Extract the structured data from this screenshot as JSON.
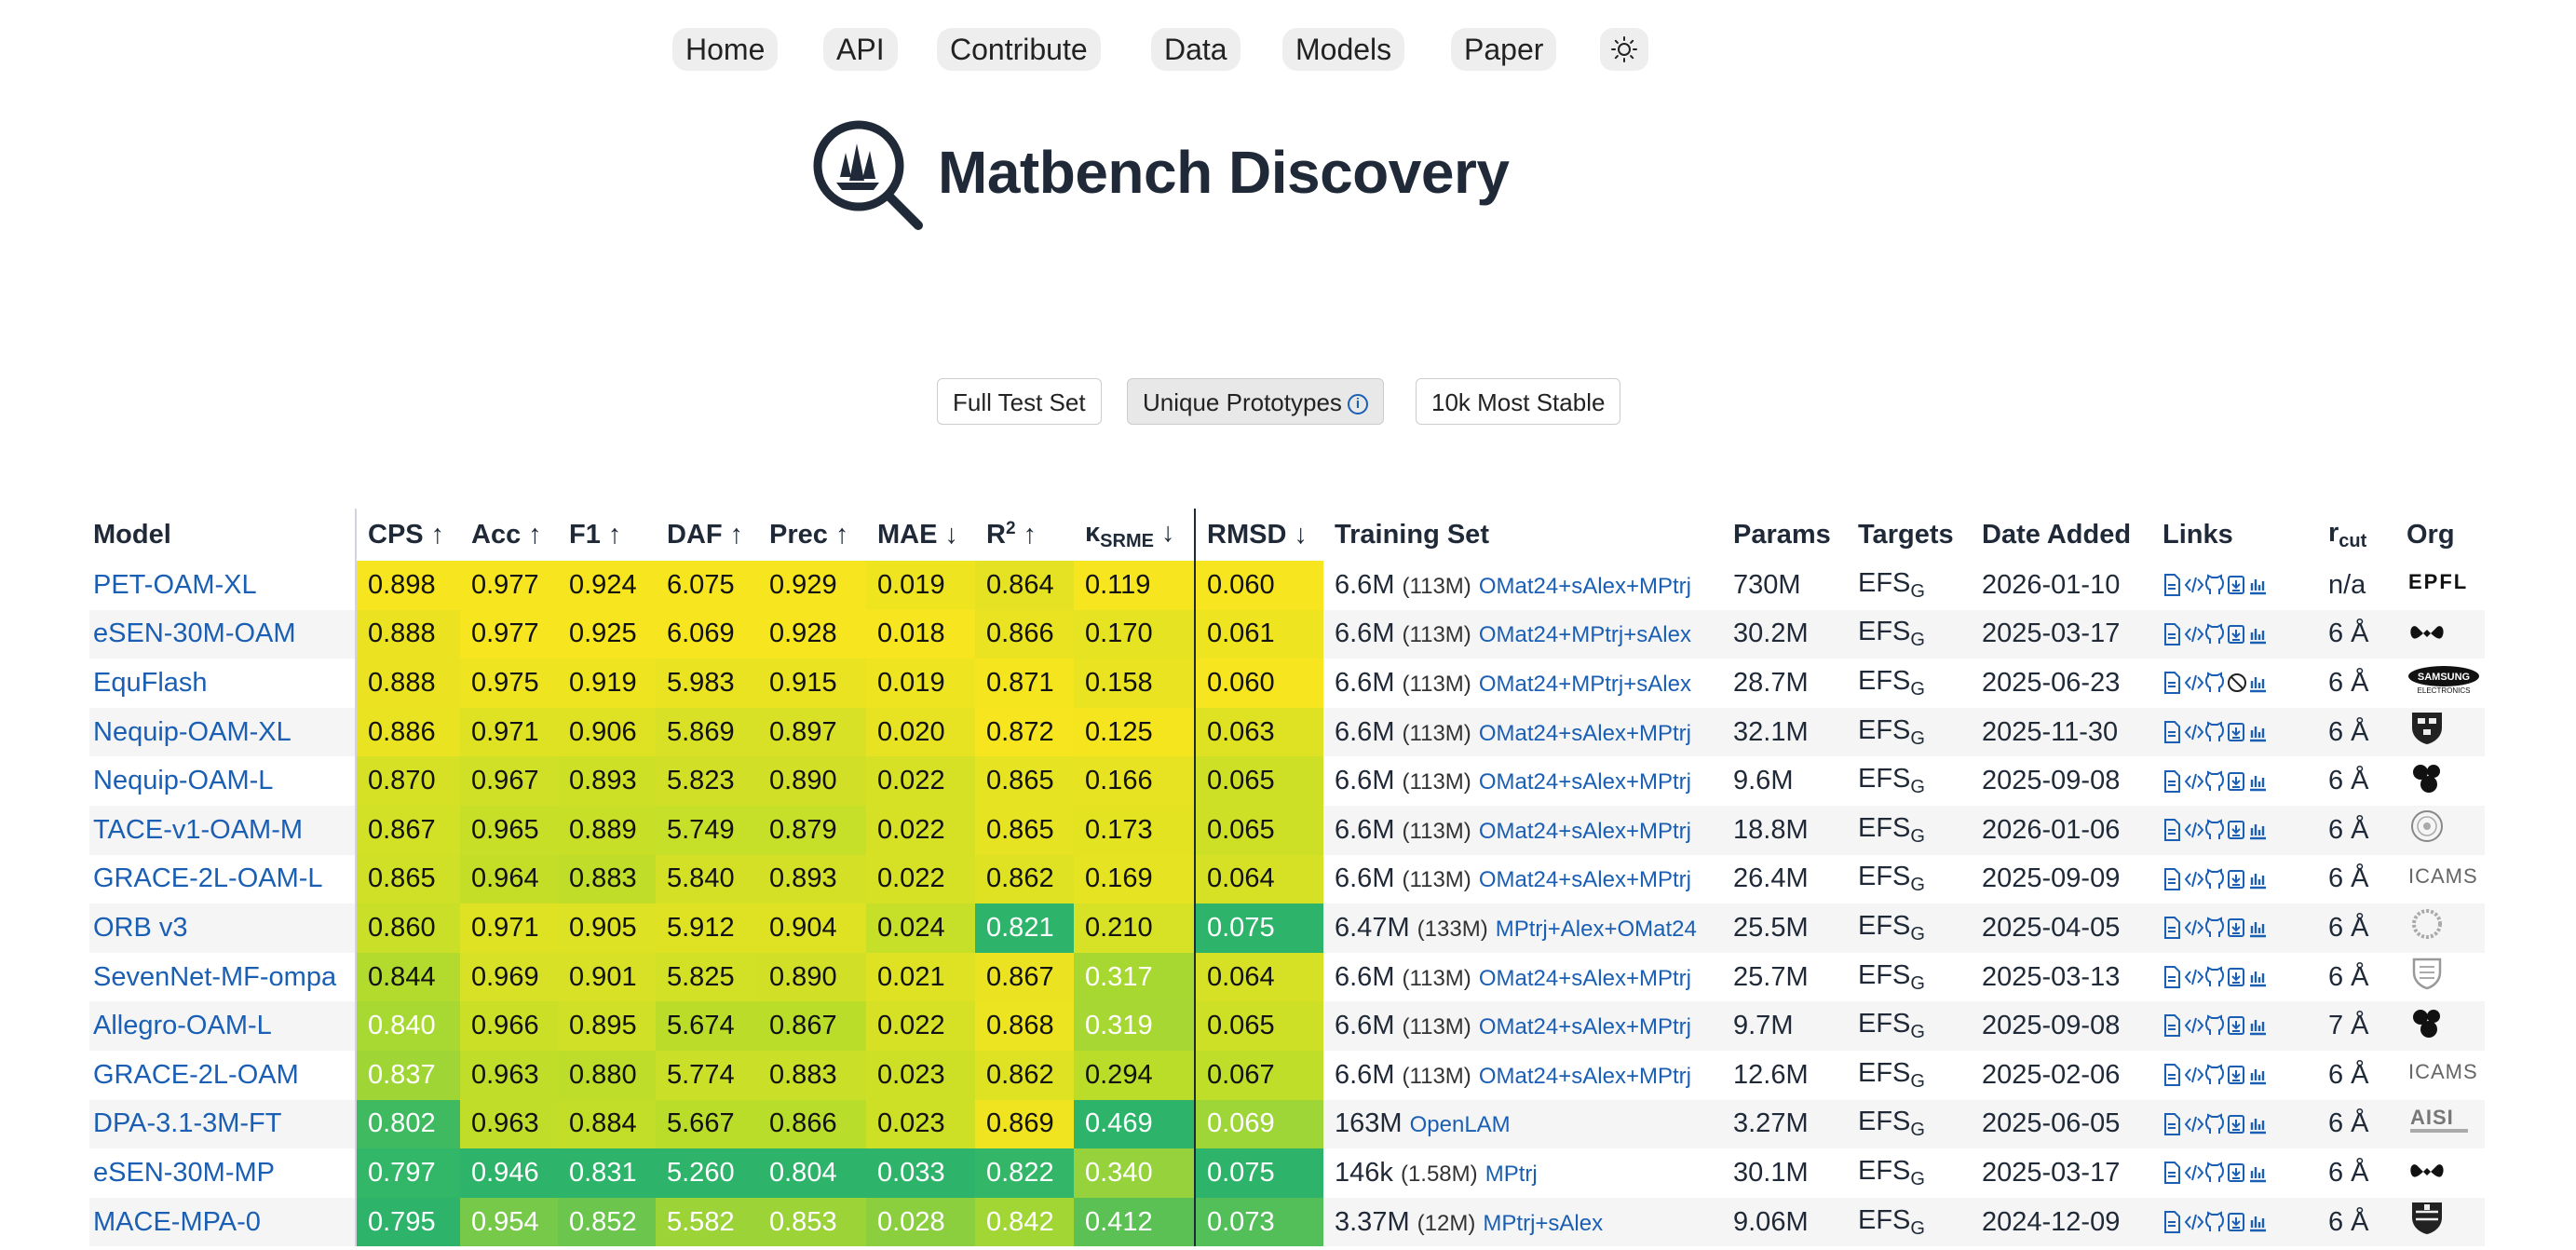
{
  "nav": {
    "items": [
      "Home",
      "API",
      "Contribute",
      "Data",
      "Models",
      "Paper"
    ],
    "theme_icon": "sun-icon"
  },
  "title": "Matbench Discovery",
  "logo_icon": "magnifier-crystal-icon",
  "test_sets": {
    "items": [
      "Full Test Set",
      "Unique Prototypes",
      "10k Most Stable"
    ],
    "active": "Unique Prototypes",
    "info_icon": "info-icon"
  },
  "colors": {
    "link": "#1a5fb4",
    "heat_high": "#f7e51f",
    "heat_low": "#2db46a"
  },
  "table": {
    "headers": {
      "model": "Model",
      "cps": "CPS ↑",
      "acc": "Acc ↑",
      "f1": "F1 ↑",
      "daf": "DAF ↑",
      "prec": "Prec ↑",
      "mae": "MAE ↓",
      "r2_base": "R",
      "r2_sup": "2",
      "r2_arrow": " ↑",
      "kappa_base": "κ",
      "kappa_sub": "SRME",
      "kappa_arrow": " ↓",
      "rmsd": "RMSD ↓",
      "training_set": "Training Set",
      "params": "Params",
      "targets": "Targets",
      "date_added": "Date Added",
      "links": "Links",
      "rcut_base": "r",
      "rcut_sub": "cut",
      "org": "Org"
    },
    "link_icons": [
      "paper-icon",
      "code-icon",
      "github-icon",
      "checkpoint-icon",
      "bar-chart-icon"
    ],
    "rows": [
      {
        "model": "PET-OAM-XL",
        "cps": "0.898",
        "acc": "0.977",
        "f1": "0.924",
        "daf": "6.075",
        "prec": "0.929",
        "mae": "0.019",
        "r2": "0.864",
        "kappa": "0.119",
        "rmsd": "0.060",
        "train_n": "6.6M",
        "train_m": "(113M)",
        "train_sets": [
          "OMat24",
          "sAlex",
          "MPtrj"
        ],
        "params": "730M",
        "target_base": "EFS",
        "target_sub": "G",
        "date": "2026-01-10",
        "rcut": "n/a",
        "org": "EPFL"
      },
      {
        "model": "eSEN-30M-OAM",
        "cps": "0.888",
        "acc": "0.977",
        "f1": "0.925",
        "daf": "6.069",
        "prec": "0.928",
        "mae": "0.018",
        "r2": "0.866",
        "kappa": "0.170",
        "rmsd": "0.061",
        "train_n": "6.6M",
        "train_m": "(113M)",
        "train_sets": [
          "OMat24",
          "MPtrj",
          "sAlex"
        ],
        "params": "30.2M",
        "target_base": "EFS",
        "target_sub": "G",
        "date": "2025-03-17",
        "rcut": "6 Å",
        "org": "meta"
      },
      {
        "model": "EquFlash",
        "cps": "0.888",
        "acc": "0.975",
        "f1": "0.919",
        "daf": "5.983",
        "prec": "0.915",
        "mae": "0.019",
        "r2": "0.871",
        "kappa": "0.158",
        "rmsd": "0.060",
        "train_n": "6.6M",
        "train_m": "(113M)",
        "train_sets": [
          "OMat24",
          "MPtrj",
          "sAlex"
        ],
        "params": "28.7M",
        "target_base": "EFS",
        "target_sub": "G",
        "date": "2025-06-23",
        "rcut": "6 Å",
        "org": "SAMSUNG"
      },
      {
        "model": "Nequip-OAM-XL",
        "cps": "0.886",
        "acc": "0.971",
        "f1": "0.906",
        "daf": "5.869",
        "prec": "0.897",
        "mae": "0.020",
        "r2": "0.872",
        "kappa": "0.125",
        "rmsd": "0.063",
        "train_n": "6.6M",
        "train_m": "(113M)",
        "train_sets": [
          "OMat24",
          "sAlex",
          "MPtrj"
        ],
        "params": "32.1M",
        "target_base": "EFS",
        "target_sub": "G",
        "date": "2025-11-30",
        "rcut": "6 Å",
        "org": "harvard"
      },
      {
        "model": "Nequip-OAM-L",
        "cps": "0.870",
        "acc": "0.967",
        "f1": "0.893",
        "daf": "5.823",
        "prec": "0.890",
        "mae": "0.022",
        "r2": "0.865",
        "kappa": "0.166",
        "rmsd": "0.065",
        "train_n": "6.6M",
        "train_m": "(113M)",
        "train_sets": [
          "OMat24",
          "sAlex",
          "MPtrj"
        ],
        "params": "9.6M",
        "target_base": "EFS",
        "target_sub": "G",
        "date": "2025-09-08",
        "rcut": "6 Å",
        "org": "mir"
      },
      {
        "model": "TACE-v1-OAM-M",
        "cps": "0.867",
        "acc": "0.965",
        "f1": "0.889",
        "daf": "5.749",
        "prec": "0.879",
        "mae": "0.022",
        "r2": "0.865",
        "kappa": "0.173",
        "rmsd": "0.065",
        "train_n": "6.6M",
        "train_m": "(113M)",
        "train_sets": [
          "OMat24",
          "sAlex",
          "MPtrj"
        ],
        "params": "18.8M",
        "target_base": "EFS",
        "target_sub": "G",
        "date": "2026-01-06",
        "rcut": "6 Å",
        "org": "seal"
      },
      {
        "model": "GRACE-2L-OAM-L",
        "cps": "0.865",
        "acc": "0.964",
        "f1": "0.883",
        "daf": "5.840",
        "prec": "0.893",
        "mae": "0.022",
        "r2": "0.862",
        "kappa": "0.169",
        "rmsd": "0.064",
        "train_n": "6.6M",
        "train_m": "(113M)",
        "train_sets": [
          "OMat24",
          "sAlex",
          "MPtrj"
        ],
        "params": "26.4M",
        "target_base": "EFS",
        "target_sub": "G",
        "date": "2025-09-09",
        "rcut": "6 Å",
        "org": "ICAMS"
      },
      {
        "model": "ORB v3",
        "cps": "0.860",
        "acc": "0.971",
        "f1": "0.905",
        "daf": "5.912",
        "prec": "0.904",
        "mae": "0.024",
        "r2": "0.821",
        "kappa": "0.210",
        "rmsd": "0.075",
        "train_n": "6.47M",
        "train_m": "(133M)",
        "train_sets": [
          "MPtrj",
          "Alex",
          "OMat24"
        ],
        "params": "25.5M",
        "target_base": "EFS",
        "target_sub": "G",
        "date": "2025-04-05",
        "rcut": "6 Å",
        "org": "orbital"
      },
      {
        "model": "SevenNet-MF-ompa",
        "cps": "0.844",
        "acc": "0.969",
        "f1": "0.901",
        "daf": "5.825",
        "prec": "0.890",
        "mae": "0.021",
        "r2": "0.867",
        "kappa": "0.317",
        "rmsd": "0.064",
        "train_n": "6.6M",
        "train_m": "(113M)",
        "train_sets": [
          "OMat24",
          "sAlex",
          "MPtrj"
        ],
        "params": "25.7M",
        "target_base": "EFS",
        "target_sub": "G",
        "date": "2025-03-13",
        "rcut": "6 Å",
        "org": "snu"
      },
      {
        "model": "Allegro-OAM-L",
        "cps": "0.840",
        "acc": "0.966",
        "f1": "0.895",
        "daf": "5.674",
        "prec": "0.867",
        "mae": "0.022",
        "r2": "0.868",
        "kappa": "0.319",
        "rmsd": "0.065",
        "train_n": "6.6M",
        "train_m": "(113M)",
        "train_sets": [
          "OMat24",
          "sAlex",
          "MPtrj"
        ],
        "params": "9.7M",
        "target_base": "EFS",
        "target_sub": "G",
        "date": "2025-09-08",
        "rcut": "7 Å",
        "org": "mir"
      },
      {
        "model": "GRACE-2L-OAM",
        "cps": "0.837",
        "acc": "0.963",
        "f1": "0.880",
        "daf": "5.774",
        "prec": "0.883",
        "mae": "0.023",
        "r2": "0.862",
        "kappa": "0.294",
        "rmsd": "0.067",
        "train_n": "6.6M",
        "train_m": "(113M)",
        "train_sets": [
          "OMat24",
          "sAlex",
          "MPtrj"
        ],
        "params": "12.6M",
        "target_base": "EFS",
        "target_sub": "G",
        "date": "2025-02-06",
        "rcut": "6 Å",
        "org": "ICAMS"
      },
      {
        "model": "DPA-3.1-3M-FT",
        "cps": "0.802",
        "acc": "0.963",
        "f1": "0.884",
        "daf": "5.667",
        "prec": "0.866",
        "mae": "0.023",
        "r2": "0.869",
        "kappa": "0.469",
        "rmsd": "0.069",
        "train_n": "163M",
        "train_m": "",
        "train_sets": [
          "OpenLAM"
        ],
        "params": "3.27M",
        "target_base": "EFS",
        "target_sub": "G",
        "date": "2025-06-05",
        "rcut": "6 Å",
        "org": "AISI"
      },
      {
        "model": "eSEN-30M-MP",
        "cps": "0.797",
        "acc": "0.946",
        "f1": "0.831",
        "daf": "5.260",
        "prec": "0.804",
        "mae": "0.033",
        "r2": "0.822",
        "kappa": "0.340",
        "rmsd": "0.075",
        "train_n": "146k",
        "train_m": "(1.58M)",
        "train_sets": [
          "MPtrj"
        ],
        "params": "30.1M",
        "target_base": "EFS",
        "target_sub": "G",
        "date": "2025-03-17",
        "rcut": "6 Å",
        "org": "meta"
      },
      {
        "model": "MACE-MPA-0",
        "cps": "0.795",
        "acc": "0.954",
        "f1": "0.852",
        "daf": "5.582",
        "prec": "0.853",
        "mae": "0.028",
        "r2": "0.842",
        "kappa": "0.412",
        "rmsd": "0.073",
        "train_n": "3.37M",
        "train_m": "(12M)",
        "train_sets": [
          "MPtrj",
          "sAlex"
        ],
        "params": "9.06M",
        "target_base": "EFS",
        "target_sub": "G",
        "date": "2024-12-09",
        "rcut": "6 Å",
        "org": "cambridge"
      }
    ]
  }
}
